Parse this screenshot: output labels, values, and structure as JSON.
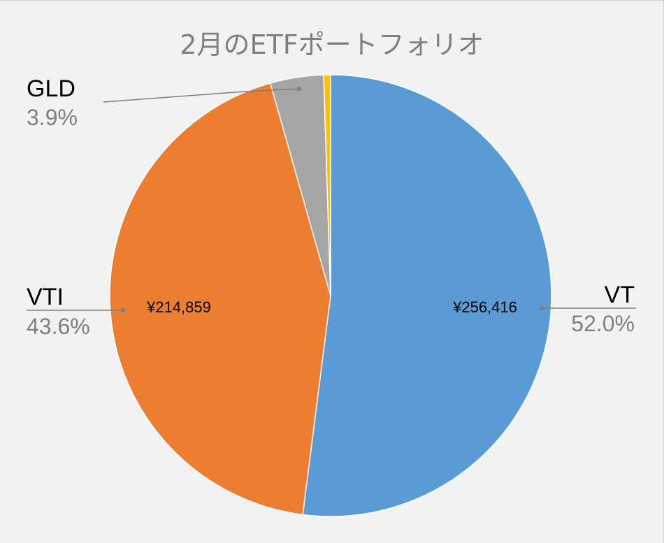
{
  "chart_data": {
    "type": "pie",
    "title": "2月のETFポートフォリオ",
    "start_angle_deg": 0,
    "direction": "clockwise",
    "slices": [
      {
        "name": "VT",
        "value": 256416,
        "value_label": "¥256,416",
        "percent_label": "52.0%",
        "color": "#5b9bd5"
      },
      {
        "name": "VTI",
        "value": 214859,
        "value_label": "¥214,859",
        "percent_label": "43.6%",
        "color": "#ed7d31"
      },
      {
        "name": "GLD",
        "value": 19230,
        "value_label": "",
        "percent_label": "3.9%",
        "color": "#a5a5a5"
      },
      {
        "name": "",
        "value": 2470,
        "value_label": "",
        "percent_label": "",
        "color": "#ffc000"
      }
    ],
    "colors": {
      "background": "#f2f2f2",
      "title": "#7f7f7f",
      "category_label": "#000000",
      "percent_label": "#7f7f7f",
      "leader_line": "#7f7f7f",
      "slice_border": "#ffffff"
    }
  }
}
